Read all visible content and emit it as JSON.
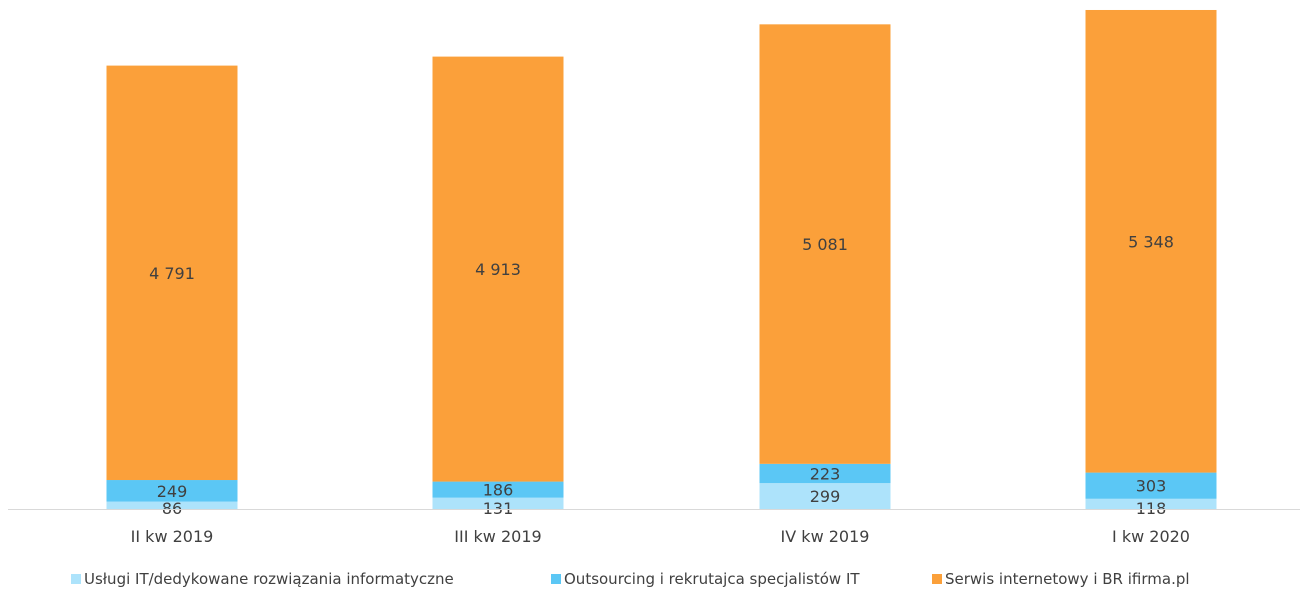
{
  "chart_data": {
    "type": "bar",
    "stacked": true,
    "title": "",
    "xlabel": "",
    "ylabel": "",
    "ylim": [
      0,
      5800
    ],
    "grid": false,
    "legend_position": "bottom",
    "categories": [
      "II kw 2019",
      "III kw 2019",
      "IV kw 2019",
      "I kw 2020"
    ],
    "series": [
      {
        "name": "Usługi IT/dedykowane rozwiązania informatyczne",
        "color": "#ADE3FB",
        "values": [
          86,
          131,
          299,
          118
        ],
        "labels": [
          "86",
          "131",
          "299",
          "118"
        ]
      },
      {
        "name": "Outsourcing i rekrutajca specjalistów IT",
        "color": "#5BC7F5",
        "values": [
          249,
          186,
          223,
          303
        ],
        "labels": [
          "249",
          "186",
          "223",
          "303"
        ]
      },
      {
        "name": "Serwis internetowy i BR ifirma.pl",
        "color": "#FBA03A",
        "values": [
          4791,
          4913,
          5081,
          5348
        ],
        "labels": [
          "4 791",
          "4 913",
          "5 081",
          "5 348"
        ]
      }
    ]
  }
}
